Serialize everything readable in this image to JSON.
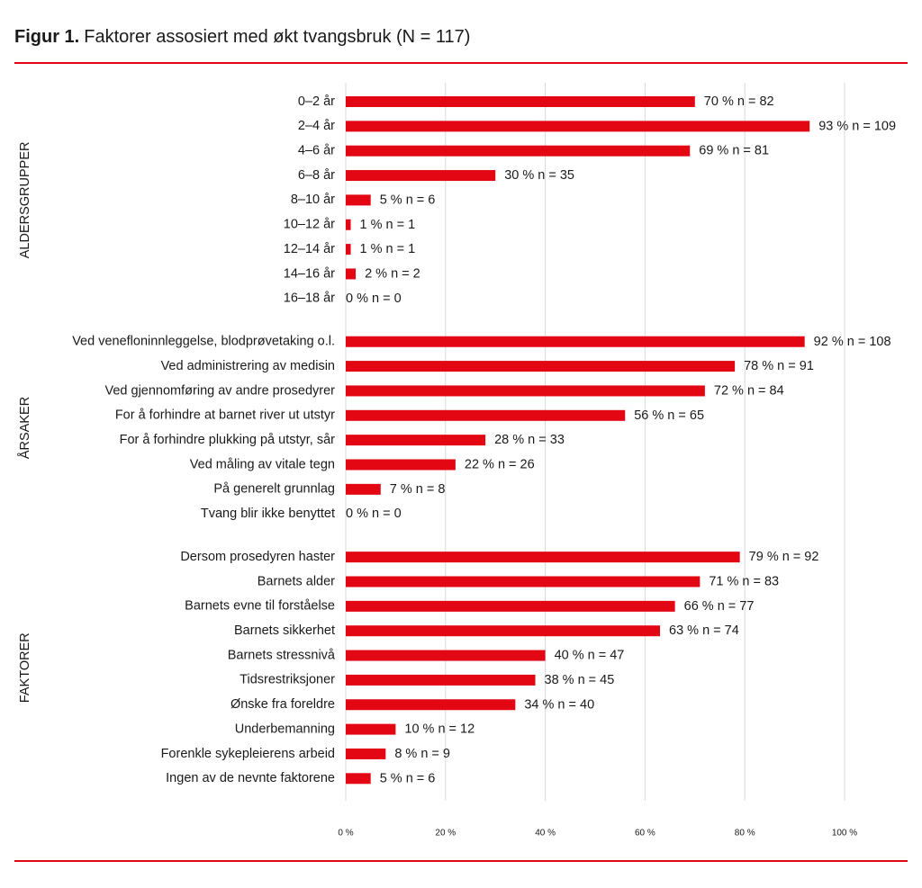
{
  "chart_data": {
    "type": "bar",
    "orientation": "horizontal",
    "title_prefix": "Figur 1.",
    "title": "Faktorer assosiert med økt tvangsbruk (N = 117)",
    "color": "#e30613",
    "grid": true,
    "xlim": [
      0,
      100
    ],
    "xticks": [
      {
        "value": 0,
        "label": "0 %"
      },
      {
        "value": 20,
        "label": "20 %"
      },
      {
        "value": 40,
        "label": "40 %"
      },
      {
        "value": 60,
        "label": "60 %"
      },
      {
        "value": 80,
        "label": "80 %"
      },
      {
        "value": 100,
        "label": "100 %"
      }
    ],
    "groups": [
      {
        "name": "ALDERSGRUPPER",
        "categories": [
          "0–2 år",
          "2–4 år",
          "4–6 år",
          "6–8 år",
          "8–10 år",
          "10–12 år",
          "12–14 år",
          "14–16 år",
          "16–18 år"
        ],
        "values": [
          70,
          93,
          69,
          30,
          5,
          1,
          1,
          2,
          0
        ],
        "value_labels": [
          "70 %",
          "93 %",
          "69 %",
          "30 %",
          "5 %",
          "1 %",
          "1 %",
          "2 %",
          "0 %"
        ],
        "n_labels": [
          "n = 82",
          "n = 109",
          "n = 81",
          "n = 35",
          "n = 6",
          "n = 1",
          "n = 1",
          "n = 2",
          "n = 0"
        ]
      },
      {
        "name": "ÅRSAKER",
        "categories": [
          "Ved venefloninnleggelse, blodprøvetaking o.l.",
          "Ved administrering av medisin",
          "Ved gjennomføring av andre prosedyrer",
          "For å forhindre at barnet river ut utstyr",
          "For å forhindre plukking på utstyr, sår",
          "Ved måling av vitale tegn",
          "På generelt grunnlag",
          "Tvang blir ikke benyttet"
        ],
        "values": [
          92,
          78,
          72,
          56,
          28,
          22,
          7,
          0
        ],
        "value_labels": [
          "92 %",
          "78 %",
          "72 %",
          "56 %",
          "28 %",
          "22 %",
          "7 %",
          "0 %"
        ],
        "n_labels": [
          "n = 108",
          "n = 91",
          "n = 84",
          "n = 65",
          "n = 33",
          "n = 26",
          "n = 8",
          "n = 0"
        ]
      },
      {
        "name": "FAKTORER",
        "categories": [
          "Dersom prosedyren haster",
          "Barnets alder",
          "Barnets evne til forståelse",
          "Barnets sikkerhet",
          "Barnets stressnivå",
          "Tidsrestriksjoner",
          "Ønske fra foreldre",
          "Underbemanning",
          "Forenkle sykepleierens arbeid",
          "Ingen av de nevnte faktorene"
        ],
        "values": [
          79,
          71,
          66,
          63,
          40,
          38,
          34,
          10,
          8,
          5
        ],
        "value_labels": [
          "79 %",
          "71 %",
          "66 %",
          "63 %",
          "40 %",
          "38 %",
          "34 %",
          "10 %",
          "8 %",
          "5 %"
        ],
        "n_labels": [
          "n = 92",
          "n = 83",
          "n = 77",
          "n = 74",
          "n = 47",
          "n = 45",
          "n = 40",
          "n = 12",
          "n = 9",
          "n = 6"
        ]
      }
    ]
  }
}
